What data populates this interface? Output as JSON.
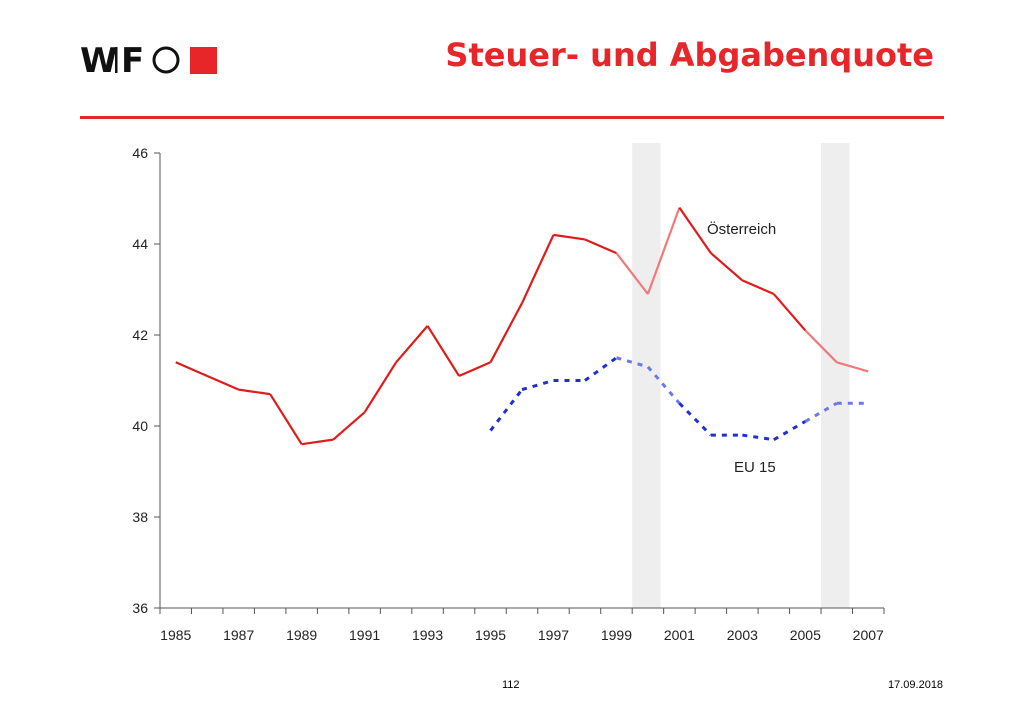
{
  "header": {
    "title": "Steuer- und Abgabenquote",
    "logo_text": "WIFO"
  },
  "footer": {
    "page_number": "112",
    "date": "17.09.2018"
  },
  "colors": {
    "accent": "#e8262a",
    "oesterreich_line": "#e01b1b",
    "oesterreich_shaded_segment": "#f07a7a",
    "eu15_line": "#1f2fd6",
    "eu15_shaded_segment": "#6a78e8",
    "shade_band": "#eeeeee"
  },
  "chart_data": {
    "type": "line",
    "title": "",
    "xlabel": "",
    "ylabel": "",
    "xlim": [
      1984.5,
      2007.5
    ],
    "ylim": [
      36,
      46
    ],
    "yticks": [
      36,
      38,
      40,
      42,
      44,
      46
    ],
    "xticks": [
      1985,
      1987,
      1989,
      1991,
      1993,
      1995,
      1997,
      1999,
      2001,
      2003,
      2005,
      2007
    ],
    "grid": false,
    "shaded_periods": [
      [
        1999.5,
        2000.4
      ],
      [
        2005.5,
        2006.4
      ]
    ],
    "series": [
      {
        "name": "Österreich",
        "style": "solid",
        "x": [
          1985,
          1986,
          1987,
          1988,
          1989,
          1990,
          1991,
          1992,
          1993,
          1994,
          1995,
          1996,
          1997,
          1998,
          1999,
          2000,
          2001,
          2002,
          2003,
          2004,
          2005,
          2006,
          2007
        ],
        "values": [
          41.4,
          41.1,
          40.8,
          40.7,
          39.6,
          39.7,
          40.3,
          41.4,
          42.2,
          41.1,
          41.4,
          42.7,
          44.2,
          44.1,
          43.8,
          42.9,
          44.8,
          43.8,
          43.2,
          42.9,
          42.1,
          41.4,
          41.2
        ]
      },
      {
        "name": "EU 15",
        "style": "dashed",
        "x": [
          1995,
          1996,
          1997,
          1998,
          1999,
          2000,
          2001,
          2002,
          2003,
          2004,
          2005,
          2006,
          2007
        ],
        "values": [
          39.9,
          40.8,
          41.0,
          41.0,
          41.5,
          41.3,
          40.5,
          39.8,
          39.8,
          39.7,
          40.1,
          40.5,
          40.5
        ]
      }
    ]
  }
}
